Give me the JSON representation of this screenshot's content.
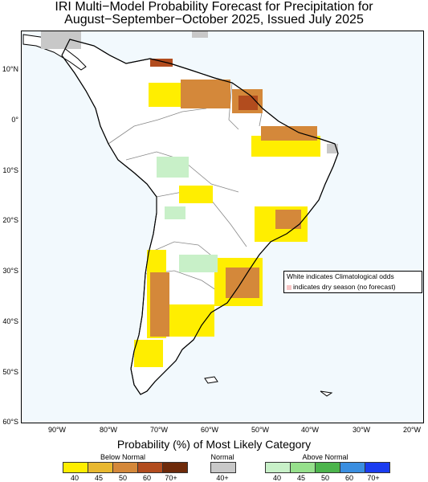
{
  "title_line1": "IRI Multi−Model Probability Forecast for Precipitation for",
  "title_line2": "August−September−October 2025, Issued July 2025",
  "lat_labels": [
    "10°N",
    "0°",
    "10°S",
    "20°S",
    "30°S",
    "40°S",
    "50°S",
    "60°S"
  ],
  "lon_labels": [
    "90°W",
    "80°W",
    "70°W",
    "60°W",
    "50°W",
    "40°W",
    "30°W",
    "20°W"
  ],
  "legend": {
    "title": "Probability (%) of Most Likely Category",
    "below_normal": {
      "label": "Below Normal",
      "ticks": [
        "40",
        "45",
        "50",
        "60",
        "70+"
      ],
      "colors": [
        "#ffee00",
        "#e8b830",
        "#d4883a",
        "#b24c1e",
        "#6e2a0a"
      ]
    },
    "normal": {
      "label": "Normal",
      "ticks": [
        "40+"
      ],
      "colors": [
        "#c8c8c8"
      ]
    },
    "above_normal": {
      "label": "Above Normal",
      "ticks": [
        "40",
        "45",
        "50",
        "60",
        "70+"
      ],
      "colors": [
        "#c8f0c8",
        "#96e08c",
        "#4cb44c",
        "#3a8ee0",
        "#1a3cf0"
      ]
    }
  },
  "note": {
    "line1": "White indicates Climatological odds",
    "line2": "indicates dry season (no forecast)"
  },
  "colors": {
    "ocean": "#f2f9fd",
    "land": "#ffffff",
    "coast": "#000000",
    "border": "#888888"
  }
}
